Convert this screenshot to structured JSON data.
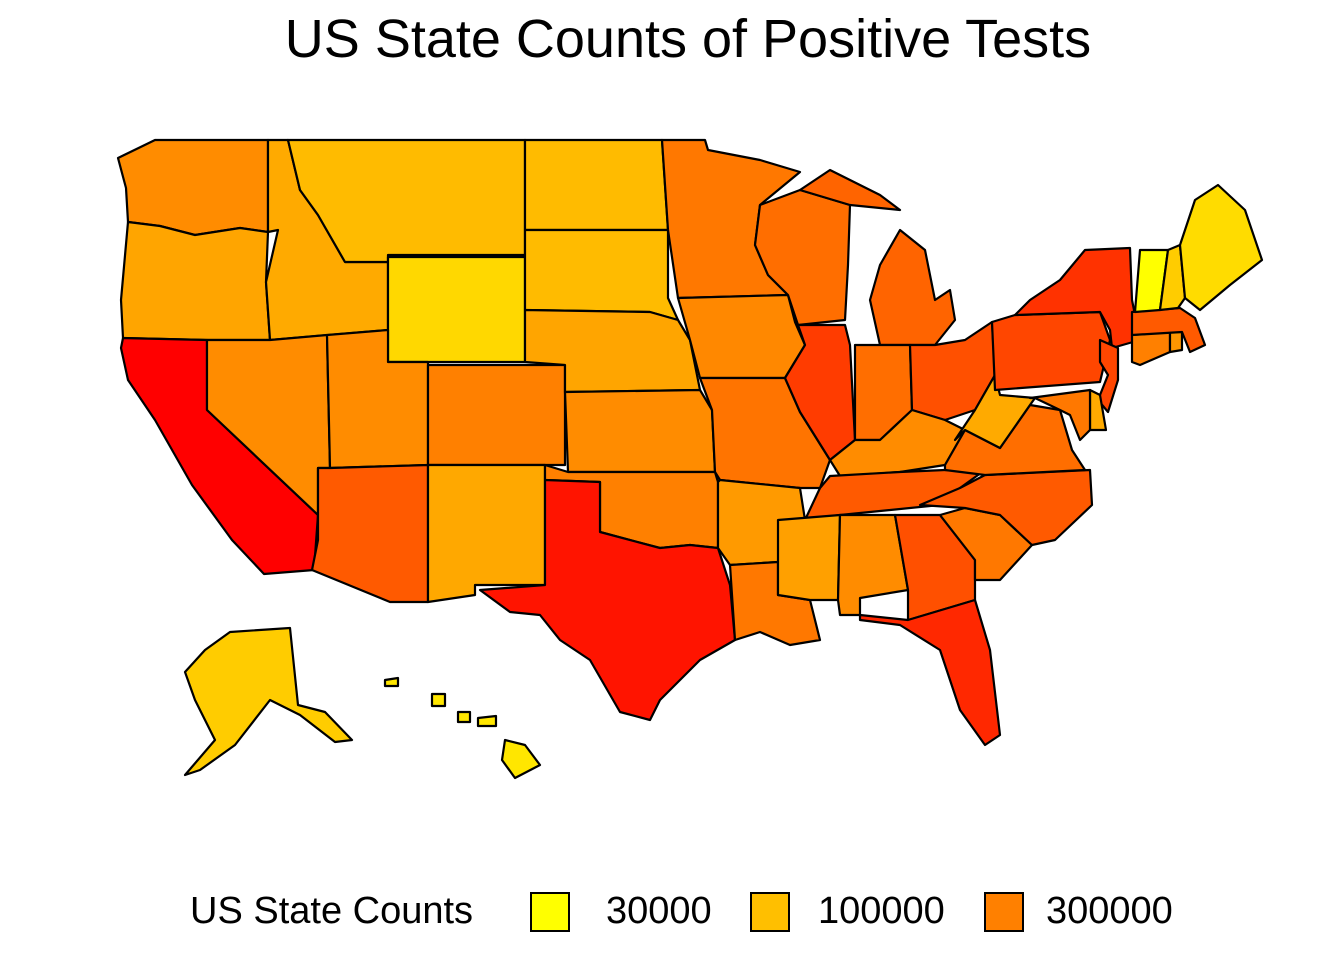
{
  "title": "US State Counts of Positive Tests",
  "legend": {
    "title": "US State Counts",
    "items": [
      {
        "label": "30000",
        "color": "#ffff00"
      },
      {
        "label": "100000",
        "color": "#ffbf00"
      },
      {
        "label": "300000",
        "color": "#ff8000"
      }
    ]
  },
  "chart_data": {
    "type": "choropleth",
    "title": "US State Counts of Positive Tests",
    "legend_title": "US State Counts",
    "scale": "log",
    "legend_breaks": [
      30000,
      100000,
      300000
    ],
    "color_range": [
      "#ffff00",
      "#ff0000"
    ],
    "regions": [
      {
        "name": "washington",
        "color": "#ff8c00"
      },
      {
        "name": "oregon",
        "color": "#ffa500"
      },
      {
        "name": "california",
        "color": "#ff0000"
      },
      {
        "name": "idaho",
        "color": "#ffaa00"
      },
      {
        "name": "nevada",
        "color": "#ff8c00"
      },
      {
        "name": "montana",
        "color": "#ffbb00"
      },
      {
        "name": "wyoming",
        "color": "#ffd800"
      },
      {
        "name": "utah",
        "color": "#ff8c00"
      },
      {
        "name": "colorado",
        "color": "#ff8000"
      },
      {
        "name": "arizona",
        "color": "#ff5a00"
      },
      {
        "name": "new-mexico",
        "color": "#ffa800"
      },
      {
        "name": "north-dakota",
        "color": "#ffbb00"
      },
      {
        "name": "south-dakota",
        "color": "#ffbb00"
      },
      {
        "name": "nebraska",
        "color": "#ffa500"
      },
      {
        "name": "kansas",
        "color": "#ff8c00"
      },
      {
        "name": "oklahoma",
        "color": "#ff8000"
      },
      {
        "name": "texas",
        "color": "#ff1400"
      },
      {
        "name": "minnesota",
        "color": "#ff7800"
      },
      {
        "name": "iowa",
        "color": "#ff8800"
      },
      {
        "name": "missouri",
        "color": "#ff7400"
      },
      {
        "name": "arkansas",
        "color": "#ff9a00"
      },
      {
        "name": "louisiana",
        "color": "#ff7800"
      },
      {
        "name": "wisconsin",
        "color": "#ff6e00"
      },
      {
        "name": "illinois",
        "color": "#ff3c00"
      },
      {
        "name": "michigan",
        "color": "#ff6400"
      },
      {
        "name": "indiana",
        "color": "#ff6e00"
      },
      {
        "name": "ohio",
        "color": "#ff5000"
      },
      {
        "name": "kentucky",
        "color": "#ff8c00"
      },
      {
        "name": "tennessee",
        "color": "#ff5a00"
      },
      {
        "name": "mississippi",
        "color": "#ffa000"
      },
      {
        "name": "alabama",
        "color": "#ff8c00"
      },
      {
        "name": "georgia",
        "color": "#ff5000"
      },
      {
        "name": "florida",
        "color": "#ff2800"
      },
      {
        "name": "south-carolina",
        "color": "#ff7800"
      },
      {
        "name": "north-carolina",
        "color": "#ff5a00"
      },
      {
        "name": "virginia",
        "color": "#ff6e00"
      },
      {
        "name": "west-virginia",
        "color": "#ffaa00"
      },
      {
        "name": "pennsylvania",
        "color": "#ff4600"
      },
      {
        "name": "new-york",
        "color": "#ff3200"
      },
      {
        "name": "new-jersey",
        "color": "#ff4600"
      },
      {
        "name": "delaware",
        "color": "#ffaa00"
      },
      {
        "name": "maryland",
        "color": "#ff7800"
      },
      {
        "name": "connecticut",
        "color": "#ff8000"
      },
      {
        "name": "rhode-island",
        "color": "#ff9600"
      },
      {
        "name": "massachusetts",
        "color": "#ff5a00"
      },
      {
        "name": "vermont",
        "color": "#ffff00"
      },
      {
        "name": "new-hampshire",
        "color": "#ffcc00"
      },
      {
        "name": "maine",
        "color": "#ffdc00"
      },
      {
        "name": "alaska",
        "color": "#ffcc00"
      },
      {
        "name": "hawaii",
        "color": "#ffe600"
      }
    ]
  }
}
